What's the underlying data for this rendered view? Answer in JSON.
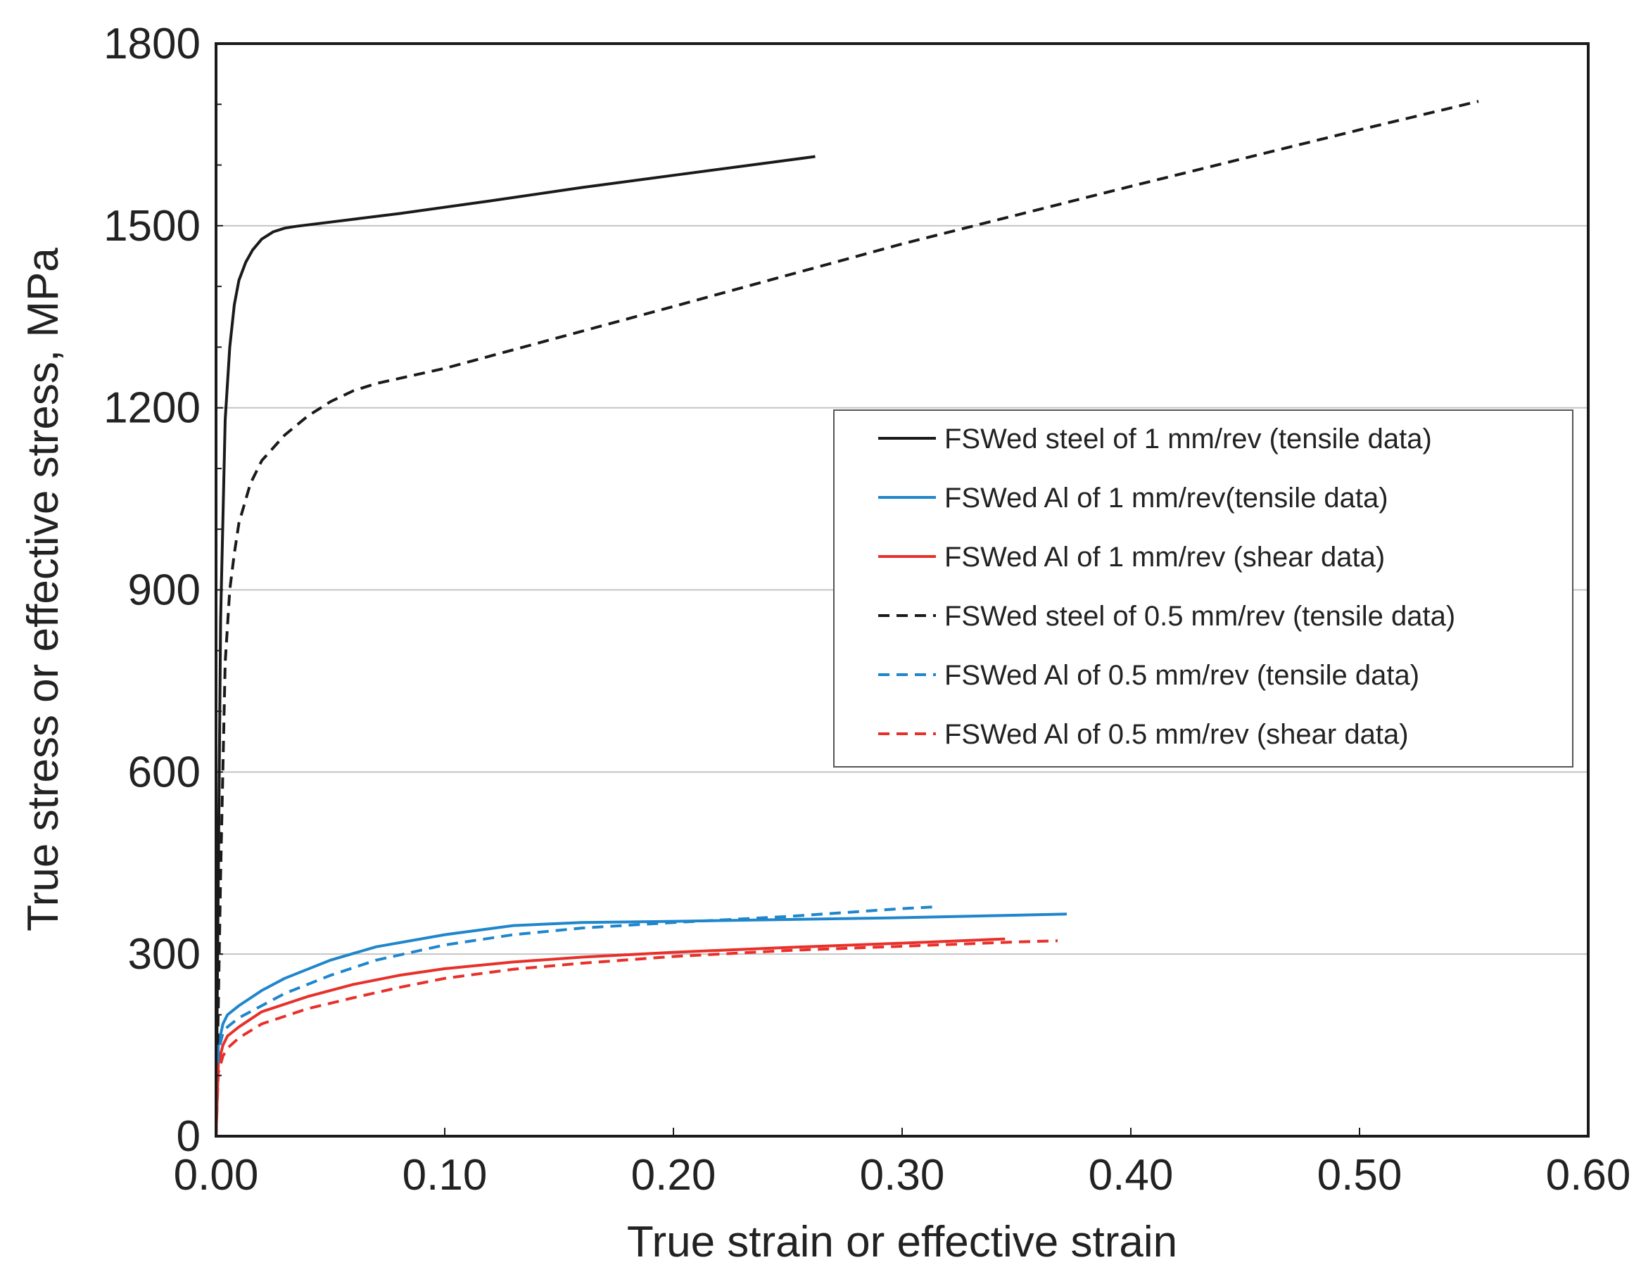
{
  "chart_data": {
    "type": "line",
    "title": "",
    "xlabel": "True strain or effective strain",
    "ylabel": "True stress or effective stress, MPa",
    "xlim": [
      0,
      0.6
    ],
    "ylim": [
      0,
      1800
    ],
    "x_ticks": [
      0,
      0.1,
      0.2,
      0.3,
      0.4,
      0.5,
      0.6
    ],
    "x_tick_labels": [
      "0.00",
      "0.10",
      "0.20",
      "0.30",
      "0.40",
      "0.50",
      "0.60"
    ],
    "y_ticks": [
      0,
      300,
      600,
      900,
      1200,
      1500,
      1800
    ],
    "y_tick_labels": [
      "0",
      "300",
      "600",
      "900",
      "1200",
      "1500",
      "1800"
    ],
    "grid": "horizontal",
    "legend_position": "center-right",
    "series": [
      {
        "name": "FSWed steel of 1 mm/rev (tensile data)",
        "color": "#1a1a1a",
        "dash": "solid",
        "x": [
          0,
          0.002,
          0.004,
          0.006,
          0.008,
          0.01,
          0.013,
          0.016,
          0.02,
          0.025,
          0.03,
          0.035,
          0.05,
          0.08,
          0.12,
          0.16,
          0.2,
          0.24,
          0.262
        ],
        "y": [
          0,
          850,
          1180,
          1300,
          1370,
          1410,
          1440,
          1460,
          1478,
          1490,
          1496,
          1499,
          1506,
          1520,
          1541,
          1563,
          1583,
          1603,
          1614
        ]
      },
      {
        "name": "FSWed Al of 1 mm/rev(tensile data)",
        "color": "#1f86cc",
        "dash": "solid",
        "x": [
          0,
          0.001,
          0.003,
          0.005,
          0.01,
          0.02,
          0.03,
          0.05,
          0.07,
          0.1,
          0.13,
          0.16,
          0.2,
          0.25,
          0.3,
          0.35,
          0.372
        ],
        "y": [
          0,
          150,
          185,
          200,
          215,
          240,
          260,
          290,
          312,
          332,
          347,
          352,
          354,
          357,
          360,
          364,
          366
        ]
      },
      {
        "name": "FSWed Al of 1 mm/rev (shear data)",
        "color": "#e8302a",
        "dash": "solid",
        "x": [
          0,
          0.001,
          0.003,
          0.005,
          0.01,
          0.02,
          0.04,
          0.06,
          0.08,
          0.1,
          0.13,
          0.16,
          0.2,
          0.25,
          0.3,
          0.345
        ],
        "y": [
          0,
          120,
          150,
          165,
          180,
          205,
          230,
          250,
          265,
          276,
          287,
          295,
          303,
          311,
          318,
          325
        ]
      },
      {
        "name": "FSWed steel of 0.5 mm/rev (tensile data)",
        "color": "#1a1a1a",
        "dash": "dashed",
        "x": [
          0,
          0.002,
          0.004,
          0.006,
          0.008,
          0.01,
          0.015,
          0.02,
          0.03,
          0.04,
          0.05,
          0.06,
          0.07,
          0.1,
          0.15,
          0.2,
          0.3,
          0.4,
          0.5,
          0.552
        ],
        "y": [
          0,
          430,
          780,
          900,
          960,
          1010,
          1075,
          1113,
          1155,
          1186,
          1210,
          1228,
          1240,
          1265,
          1316,
          1367,
          1470,
          1565,
          1658,
          1705
        ]
      },
      {
        "name": "FSWed Al of 0.5 mm/rev (tensile data)",
        "color": "#1f86cc",
        "dash": "dashed",
        "x": [
          0,
          0.001,
          0.003,
          0.005,
          0.01,
          0.02,
          0.03,
          0.05,
          0.07,
          0.1,
          0.13,
          0.16,
          0.2,
          0.25,
          0.3,
          0.315
        ],
        "y": [
          0,
          140,
          170,
          180,
          195,
          215,
          235,
          265,
          290,
          315,
          332,
          343,
          352,
          362,
          375,
          378
        ]
      },
      {
        "name": "FSWed Al of 0.5 mm/rev (shear data)",
        "color": "#e8302a",
        "dash": "dashed",
        "x": [
          0,
          0.001,
          0.003,
          0.005,
          0.01,
          0.02,
          0.04,
          0.06,
          0.08,
          0.1,
          0.13,
          0.16,
          0.2,
          0.25,
          0.3,
          0.35,
          0.368
        ],
        "y": [
          0,
          105,
          132,
          145,
          162,
          185,
          210,
          228,
          245,
          260,
          275,
          285,
          296,
          306,
          313,
          320,
          322
        ]
      }
    ]
  }
}
